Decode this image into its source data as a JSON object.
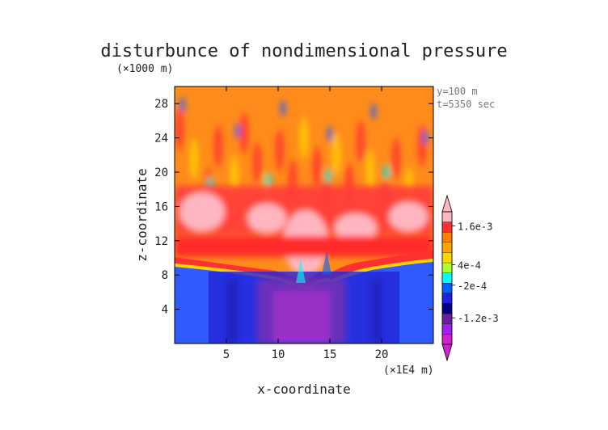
{
  "chart_data": {
    "type": "heatmap",
    "title": "disturbunce of nondimensional pressure",
    "xlabel": "x-coordinate",
    "ylabel": "z-coordinate",
    "x_unit": "(×1E4 m)",
    "y_unit": "(×1000 m)",
    "annotations": [
      "y=100 m",
      "t=5350 sec"
    ],
    "xlim": [
      0,
      25
    ],
    "ylim": [
      0,
      30
    ],
    "x_ticks": [
      5,
      10,
      15,
      20
    ],
    "x_tick_labels": [
      "5",
      "10",
      "15",
      "20"
    ],
    "y_ticks": [
      4,
      8,
      12,
      16,
      20,
      24,
      28
    ],
    "y_tick_labels": [
      "4",
      "8",
      "12",
      "16",
      "20",
      "24",
      "28"
    ],
    "colorbar": {
      "labels": [
        "1.6e-3",
        "4e-4",
        "-2e-4",
        "-1.2e-3"
      ],
      "colors": [
        "#ffb6c1",
        "#ff3030",
        "#ff7f00",
        "#ffa500",
        "#ffd700",
        "#adff2f",
        "#00ffff",
        "#0060ff",
        "#2020e0",
        "#00008b",
        "#6a1fa0",
        "#a020f0",
        "#d020d0"
      ]
    }
  }
}
